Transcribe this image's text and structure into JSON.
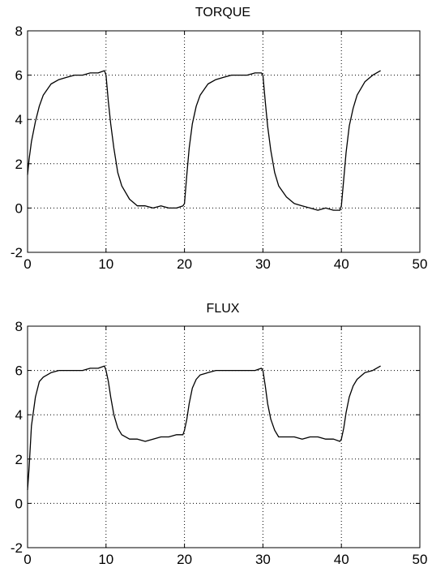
{
  "chart_data": [
    {
      "type": "line",
      "title": "TORQUE",
      "xlabel": "",
      "ylabel": "",
      "xlim": [
        0,
        50
      ],
      "ylim": [
        -2,
        8
      ],
      "xticks": [
        0,
        10,
        20,
        30,
        40,
        50
      ],
      "yticks": [
        -2,
        0,
        2,
        4,
        6,
        8
      ],
      "xtick_labels": [
        "0",
        "10",
        "20",
        "30",
        "40",
        "50"
      ],
      "ytick_labels": [
        "-2",
        "0",
        "2",
        "4",
        "6",
        "8"
      ],
      "grid": true,
      "line_color": "#000000",
      "series": [
        {
          "x": [
            0,
            0.2,
            0.5,
            1,
            1.5,
            2,
            3,
            4,
            5,
            6,
            7,
            8,
            9,
            9.8,
            10,
            10.3,
            10.6,
            11,
            11.5,
            12,
            13,
            14,
            15,
            16,
            17,
            18,
            19,
            19.8,
            20,
            20.3,
            20.6,
            21,
            21.5,
            22,
            23,
            24,
            25,
            26,
            27,
            28,
            29,
            29.8,
            30,
            30.3,
            30.6,
            31,
            31.5,
            32,
            33,
            34,
            35,
            36,
            37,
            38,
            39,
            39.8,
            40,
            40.3,
            40.6,
            41,
            41.5,
            42,
            43,
            44,
            45
          ],
          "y": [
            1.5,
            2.2,
            3.0,
            3.9,
            4.6,
            5.1,
            5.6,
            5.8,
            5.9,
            6.0,
            6.0,
            6.1,
            6.1,
            6.2,
            6.0,
            4.8,
            3.8,
            2.7,
            1.6,
            1.0,
            0.4,
            0.1,
            0.1,
            0.0,
            0.1,
            0.0,
            0.0,
            0.1,
            0.2,
            1.5,
            2.7,
            3.8,
            4.6,
            5.1,
            5.6,
            5.8,
            5.9,
            6.0,
            6.0,
            6.0,
            6.1,
            6.1,
            6.0,
            4.8,
            3.7,
            2.6,
            1.6,
            1.0,
            0.5,
            0.2,
            0.1,
            0.0,
            -0.1,
            0.0,
            -0.1,
            -0.1,
            0.1,
            1.3,
            2.5,
            3.7,
            4.5,
            5.1,
            5.7,
            6.0,
            6.2
          ]
        }
      ]
    },
    {
      "type": "line",
      "title": "FLUX",
      "xlabel": "",
      "ylabel": "",
      "xlim": [
        0,
        50
      ],
      "ylim": [
        -2,
        8
      ],
      "xticks": [
        0,
        10,
        20,
        30,
        40,
        50
      ],
      "yticks": [
        -2,
        0,
        2,
        4,
        6,
        8
      ],
      "xtick_labels": [
        "0",
        "10",
        "20",
        "30",
        "40",
        "50"
      ],
      "ytick_labels": [
        "-2",
        "0",
        "2",
        "4",
        "6",
        "8"
      ],
      "grid": true,
      "line_color": "#000000",
      "series": [
        {
          "x": [
            0,
            0.2,
            0.5,
            1,
            1.5,
            2,
            3,
            4,
            5,
            6,
            7,
            8,
            9,
            9.8,
            10,
            10.3,
            10.6,
            11,
            11.5,
            12,
            13,
            14,
            15,
            16,
            17,
            18,
            19,
            19.8,
            20,
            20.3,
            20.6,
            21,
            21.5,
            22,
            23,
            24,
            25,
            26,
            27,
            28,
            29,
            29.8,
            30,
            30.3,
            30.6,
            31,
            31.5,
            32,
            33,
            34,
            35,
            36,
            37,
            38,
            39,
            39.8,
            40,
            40.3,
            40.6,
            41,
            41.5,
            42,
            43,
            44,
            45
          ],
          "y": [
            0.6,
            1.6,
            3.5,
            4.8,
            5.5,
            5.7,
            5.9,
            6.0,
            6.0,
            6.0,
            6.0,
            6.1,
            6.1,
            6.2,
            6.0,
            5.5,
            4.8,
            4.0,
            3.4,
            3.1,
            2.9,
            2.9,
            2.8,
            2.9,
            3.0,
            3.0,
            3.1,
            3.1,
            3.3,
            3.8,
            4.5,
            5.2,
            5.6,
            5.8,
            5.9,
            6.0,
            6.0,
            6.0,
            6.0,
            6.0,
            6.0,
            6.1,
            6.0,
            5.3,
            4.5,
            3.8,
            3.3,
            3.0,
            3.0,
            3.0,
            2.9,
            3.0,
            3.0,
            2.9,
            2.9,
            2.8,
            2.9,
            3.4,
            4.1,
            4.8,
            5.3,
            5.6,
            5.9,
            6.0,
            6.2
          ]
        }
      ]
    }
  ]
}
